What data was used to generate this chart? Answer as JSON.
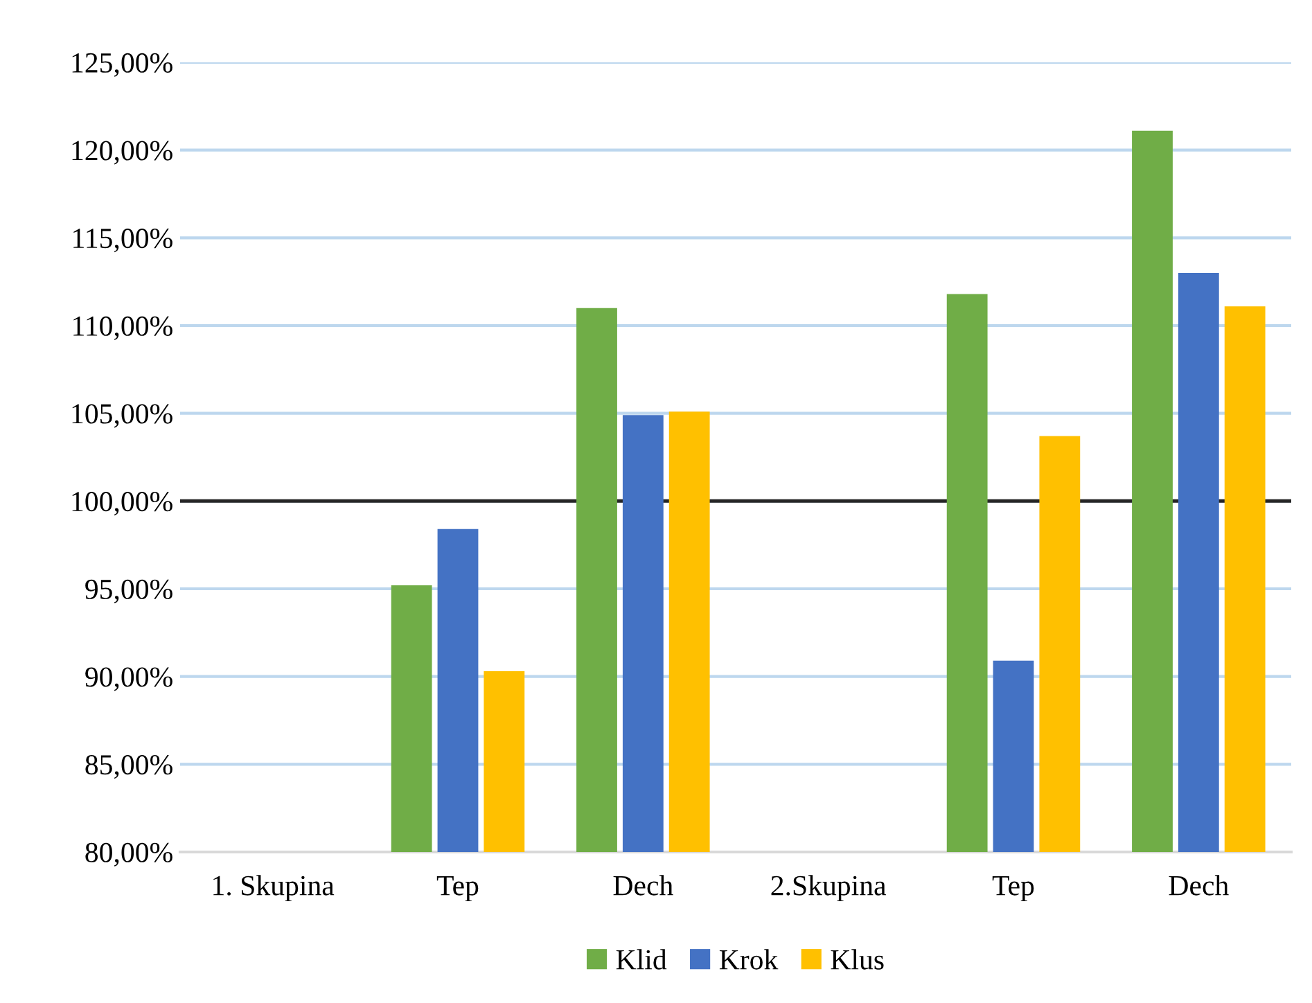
{
  "chart_data": {
    "type": "bar",
    "categories": [
      "1. Skupina",
      "Tep",
      "Dech",
      "2.Skupina",
      "Tep",
      "Dech"
    ],
    "series": [
      {
        "name": "Klid",
        "color": "#70ad47",
        "values": [
          null,
          95.2,
          111.0,
          null,
          111.8,
          121.1
        ]
      },
      {
        "name": "Krok",
        "color": "#4472c4",
        "values": [
          null,
          98.4,
          104.9,
          null,
          90.9,
          113.0
        ]
      },
      {
        "name": "Klus",
        "color": "#ffc000",
        "values": [
          null,
          90.3,
          105.1,
          null,
          103.7,
          111.1
        ]
      }
    ],
    "ylim": [
      80,
      125
    ],
    "yticks": [
      {
        "value": 80,
        "label": "80,00%"
      },
      {
        "value": 85,
        "label": "85,00%"
      },
      {
        "value": 90,
        "label": "90,00%"
      },
      {
        "value": 95,
        "label": "95,00%"
      },
      {
        "value": 100,
        "label": "100,00%"
      },
      {
        "value": 105,
        "label": "105,00%"
      },
      {
        "value": 110,
        "label": "110,00%"
      },
      {
        "value": 115,
        "label": "115,00%"
      },
      {
        "value": 120,
        "label": "120,00%"
      },
      {
        "value": 125,
        "label": "125,00%"
      }
    ],
    "ref_lines": [
      {
        "axis": "y",
        "value": 100,
        "color": "#262626"
      }
    ],
    "grid": "y",
    "legend": "bottom"
  }
}
